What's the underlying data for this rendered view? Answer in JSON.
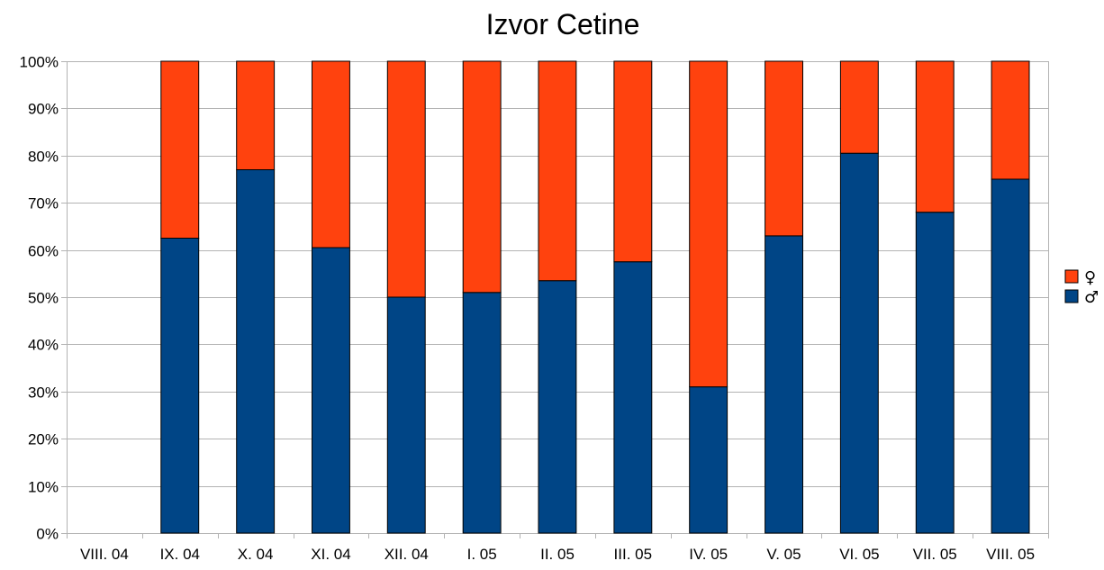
{
  "chart_data": {
    "type": "bar",
    "stacked": true,
    "percent": true,
    "title": "Izvor Cetine",
    "xlabel": "",
    "ylabel": "",
    "categories": [
      "VIII. 04",
      "IX. 04",
      "X. 04",
      "XI. 04",
      "XII. 04",
      "I. 05",
      "II. 05",
      "III. 05",
      "IV. 05",
      "V. 05",
      "VI. 05",
      "VII. 05",
      "VIII. 05"
    ],
    "series": [
      {
        "name": "♂",
        "color": "#004586",
        "values": [
          0,
          62.5,
          77,
          60.5,
          50,
          51,
          53.5,
          57.5,
          31,
          63,
          80.5,
          68,
          75
        ]
      },
      {
        "name": "♀",
        "color": "#ff420e",
        "values": [
          0,
          37.5,
          23,
          39.5,
          50,
          49,
          46.5,
          42.5,
          69,
          37,
          19.5,
          32,
          25
        ]
      }
    ],
    "ylim": [
      0,
      100
    ],
    "yticks": [
      "0%",
      "10%",
      "20%",
      "30%",
      "40%",
      "50%",
      "60%",
      "70%",
      "80%",
      "90%",
      "100%"
    ],
    "grid": true,
    "legend": {
      "position": "right",
      "entries": [
        {
          "label": "♀",
          "color": "#ff420e"
        },
        {
          "label": "♂",
          "color": "#004586"
        }
      ]
    }
  }
}
